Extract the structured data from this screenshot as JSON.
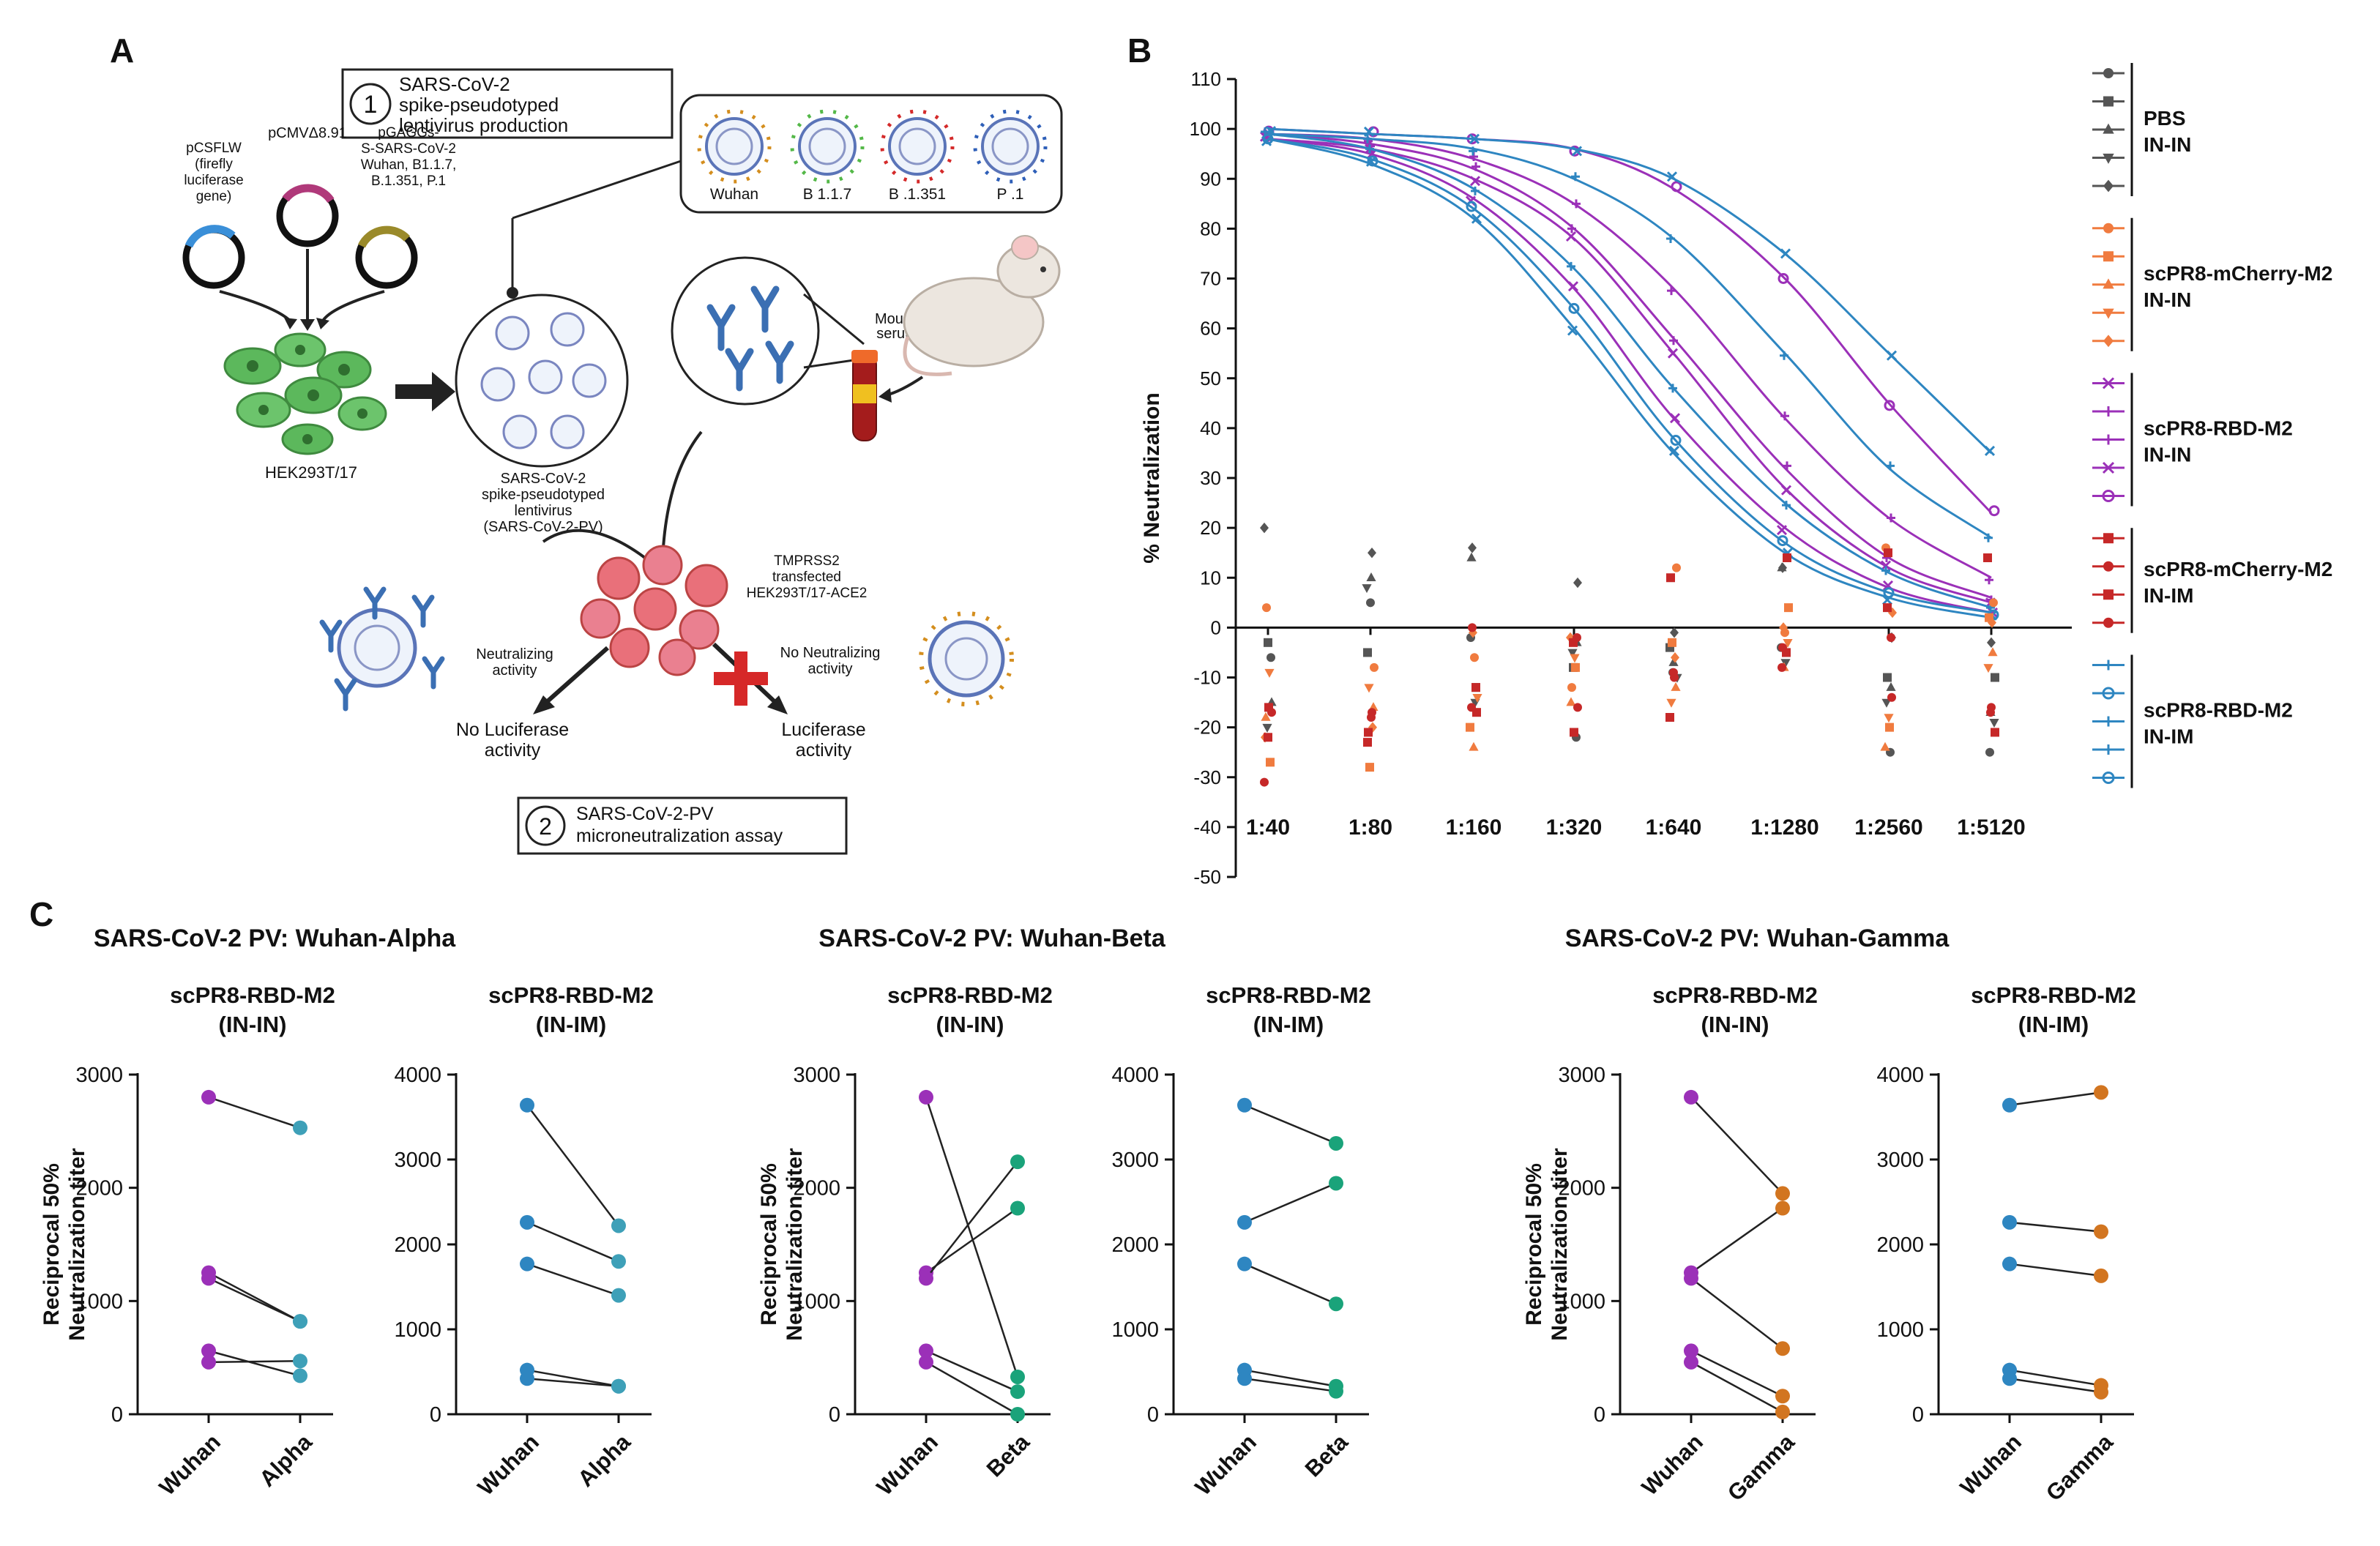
{
  "panel_labels": {
    "a": "A",
    "b": "B",
    "c": "C"
  },
  "panel_a": {
    "step1_number": "1",
    "step1_lines": [
      "SARS-CoV-2",
      "spike-pseudotyped",
      "lentivirus production"
    ],
    "plasmid_pcsflw": [
      "pCSFLW",
      "(firefly",
      "luciferase",
      "gene)"
    ],
    "plasmid_pcmv": "pCMVΔ8.91",
    "plasmid_pgaggs": [
      "pGAGGs-",
      "S-SARS-CoV-2",
      "Wuhan, B1.1.7,",
      "B.1.351, P.1"
    ],
    "variants": [
      "Wuhan",
      "B 1.1.7",
      "B .1.351",
      "P .1"
    ],
    "cell_label": "HEK293T/17",
    "pv_label": [
      "SARS-CoV-2",
      "spike-pseudotyped",
      "lentivirus",
      "(SARS-CoV-2-PV)"
    ],
    "mouse_label": [
      "Mouse",
      "serum"
    ],
    "target_cell_label": [
      "TMPRSS2",
      "transfected",
      "HEK293T/17-ACE2"
    ],
    "neutralizing_label": [
      "Neutralizing",
      "activity"
    ],
    "no_neutralizing_label": [
      "No Neutralizing",
      "activity"
    ],
    "outcome_no_luc": [
      "No Luciferase",
      "activity"
    ],
    "outcome_luc": [
      "Luciferase",
      "activity"
    ],
    "step2_number": "2",
    "step2_lines": [
      "SARS-CoV-2-PV",
      "microneutralization assay"
    ],
    "colors": {
      "plasmid_blue": "#3a8fd8",
      "plasmid_magenta": "#b0397a",
      "plasmid_olive": "#9a8a2a",
      "cell_green": "#5cb85c",
      "antibody_blue": "#3b6fb3",
      "red_cross": "#d62828"
    }
  },
  "panel_b_chart": {
    "type": "scatter",
    "ylabel": "% Neutralization",
    "y_ticks": [
      110,
      100,
      90,
      80,
      70,
      60,
      50,
      40,
      30,
      20,
      10,
      0,
      -10,
      -20,
      -30,
      -40,
      -50
    ],
    "ylim": [
      -50,
      110
    ],
    "categories": [
      "1:40",
      "1:80",
      "1:160",
      "1:320",
      "1:640",
      "1:1280",
      "1:2560",
      "1:5120"
    ],
    "legend_groups": [
      {
        "name": "PBS",
        "route": "IN-IN",
        "color": "#555555"
      },
      {
        "name": "scPR8-mCherry-M2",
        "route": "IN-IN",
        "color": "#f07b3f"
      },
      {
        "name": "scPR8-RBD-M2",
        "route": "IN-IN",
        "color": "#9b30b8"
      },
      {
        "name": "scPR8-mCherry-M2",
        "route": "IN-IM",
        "color": "#c62828"
      },
      {
        "name": "scPR8-RBD-M2",
        "route": "IN-IM",
        "color": "#2e86c1"
      }
    ],
    "fitted_curves": [
      {
        "group": "scPR8-RBD-M2 IN-IN",
        "values": [
          98,
          96,
          90,
          78,
          55,
          28,
          12,
          5
        ]
      },
      {
        "group": "scPR8-RBD-M2 IN-IN",
        "values": [
          99,
          98,
          94,
          85,
          68,
          42,
          22,
          10
        ]
      },
      {
        "group": "scPR8-RBD-M2 IN-IN",
        "values": [
          100,
          99,
          98,
          96,
          88,
          70,
          45,
          23
        ]
      },
      {
        "group": "scPR8-RBD-M2 IN-IN",
        "values": [
          98,
          95,
          86,
          68,
          42,
          20,
          8,
          3
        ]
      },
      {
        "group": "scPR8-RBD-M2 IN-IN",
        "values": [
          99,
          97,
          92,
          80,
          58,
          32,
          14,
          6
        ]
      },
      {
        "group": "scPR8-RBD-M2 IN-IM",
        "values": [
          100,
          99,
          98,
          96,
          90,
          75,
          55,
          35
        ]
      },
      {
        "group": "scPR8-RBD-M2 IN-IM",
        "values": [
          99,
          98,
          96,
          90,
          78,
          55,
          32,
          18
        ]
      },
      {
        "group": "scPR8-RBD-M2 IN-IM",
        "values": [
          98,
          94,
          84,
          64,
          38,
          17,
          7,
          3
        ]
      },
      {
        "group": "scPR8-RBD-M2 IN-IM",
        "values": [
          98,
          93,
          82,
          60,
          35,
          15,
          6,
          2
        ]
      },
      {
        "group": "scPR8-RBD-M2 IN-IM",
        "values": [
          99,
          96,
          88,
          72,
          48,
          25,
          11,
          4
        ]
      }
    ],
    "scatter_series": [
      {
        "group": "PBS IN-IN",
        "color": "#555555",
        "values": [
          20,
          15,
          16,
          9,
          -1,
          12,
          -2,
          -3
        ],
        "marker": "diamond"
      },
      {
        "group": "PBS IN-IN",
        "color": "#555555",
        "values": [
          -3,
          -5,
          -12,
          -8,
          -4,
          -5,
          -10,
          -10
        ],
        "marker": "square"
      },
      {
        "group": "PBS IN-IN",
        "color": "#555555",
        "values": [
          -15,
          10,
          14,
          -3,
          -7,
          12,
          -12,
          -17
        ],
        "marker": "triangle"
      },
      {
        "group": "PBS IN-IN",
        "color": "#555555",
        "values": [
          -20,
          8,
          -15,
          -5,
          -10,
          -7,
          -15,
          -19
        ],
        "marker": "triangle-down"
      },
      {
        "group": "PBS IN-IN",
        "color": "#555555",
        "values": [
          -6,
          5,
          -2,
          -22,
          -9,
          -4,
          -25,
          -25
        ],
        "marker": "circle"
      },
      {
        "group": "scPR8-mCherry-M2 IN-IN",
        "color": "#f07b3f",
        "values": [
          4,
          -8,
          -6,
          -12,
          12,
          -1,
          16,
          5
        ],
        "marker": "circle"
      },
      {
        "group": "scPR8-mCherry-M2 IN-IN",
        "color": "#f07b3f",
        "values": [
          -27,
          -28,
          -20,
          -8,
          -3,
          4,
          -20,
          2
        ],
        "marker": "square"
      },
      {
        "group": "scPR8-mCherry-M2 IN-IN",
        "color": "#f07b3f",
        "values": [
          -18,
          -16,
          -24,
          -15,
          -12,
          -8,
          -24,
          -5
        ],
        "marker": "triangle"
      },
      {
        "group": "scPR8-mCherry-M2 IN-IN",
        "color": "#f07b3f",
        "values": [
          -9,
          -12,
          -14,
          -6,
          -15,
          -3,
          -18,
          -8
        ],
        "marker": "triangle-down"
      },
      {
        "group": "scPR8-mCherry-M2 IN-IN",
        "color": "#f07b3f",
        "values": [
          -22,
          -20,
          -1,
          -2,
          -6,
          0,
          3,
          1
        ],
        "marker": "diamond"
      },
      {
        "group": "scPR8-mCherry-M2 IN-IM",
        "color": "#c62828",
        "values": [
          -16,
          -21,
          -17,
          -21,
          10,
          14,
          15,
          14
        ],
        "marker": "square"
      },
      {
        "group": "scPR8-mCherry-M2 IN-IM",
        "color": "#c62828",
        "values": [
          -31,
          -17,
          0,
          -16,
          -10,
          -4,
          -14,
          -16
        ],
        "marker": "circle"
      },
      {
        "group": "scPR8-mCherry-M2 IN-IM",
        "color": "#c62828",
        "values": [
          -22,
          -23,
          -12,
          -3,
          -18,
          -5,
          4,
          -21
        ],
        "marker": "square"
      },
      {
        "group": "scPR8-mCherry-M2 IN-IM",
        "color": "#c62828",
        "values": [
          -17,
          -18,
          -16,
          -2,
          -9,
          -8,
          -2,
          -17
        ],
        "marker": "circle"
      }
    ]
  },
  "panel_c": {
    "ylabel": "Reciprocal 50% Neutralization titer",
    "groups": [
      {
        "title": "SARS-CoV-2 PV: Wuhan-Alpha",
        "plots": [
          {
            "subtitle": "scPR8-RBD-M2",
            "route": "(IN-IN)",
            "categories": [
              "Wuhan",
              "Alpha"
            ],
            "ylim": [
              0,
              3000
            ],
            "ticks": [
              0,
              1000,
              2000,
              3000
            ],
            "color_left": "#9b30b8",
            "color_right": "#3ea0b8",
            "pairs": [
              [
                2800,
                2530
              ],
              [
                1250,
                820
              ],
              [
                1200,
                820
              ],
              [
                560,
                340
              ],
              [
                460,
                470
              ]
            ]
          },
          {
            "subtitle": "scPR8-RBD-M2",
            "route": "(IN-IM)",
            "categories": [
              "Wuhan",
              "Alpha"
            ],
            "ylim": [
              0,
              4000
            ],
            "ticks": [
              0,
              1000,
              2000,
              3000,
              4000
            ],
            "color_left": "#2e86c1",
            "color_right": "#3ea0b8",
            "pairs": [
              [
                3640,
                2220
              ],
              [
                2260,
                1800
              ],
              [
                1770,
                1400
              ],
              [
                520,
                330
              ],
              [
                420,
                330
              ]
            ]
          }
        ]
      },
      {
        "title": "SARS-CoV-2 PV: Wuhan-Beta",
        "plots": [
          {
            "subtitle": "scPR8-RBD-M2",
            "route": "(IN-IN)",
            "categories": [
              "Wuhan",
              "Beta"
            ],
            "ylim": [
              0,
              3000
            ],
            "ticks": [
              0,
              1000,
              2000,
              3000
            ],
            "color_left": "#9b30b8",
            "color_right": "#1aa37a",
            "pairs": [
              [
                2800,
                330
              ],
              [
                1250,
                1820
              ],
              [
                1200,
                2230
              ],
              [
                560,
                200
              ],
              [
                460,
                0
              ]
            ]
          },
          {
            "subtitle": "scPR8-RBD-M2",
            "route": "(IN-IM)",
            "categories": [
              "Wuhan",
              "Beta"
            ],
            "ylim": [
              0,
              4000
            ],
            "ticks": [
              0,
              1000,
              2000,
              3000,
              4000
            ],
            "color_left": "#2e86c1",
            "color_right": "#1aa37a",
            "pairs": [
              [
                3640,
                3190
              ],
              [
                2260,
                2720
              ],
              [
                1770,
                1300
              ],
              [
                520,
                330
              ],
              [
                420,
                270
              ]
            ]
          }
        ]
      },
      {
        "title": "SARS-CoV-2 PV: Wuhan-Gamma",
        "plots": [
          {
            "subtitle": "scPR8-RBD-M2",
            "route": "(IN-IN)",
            "categories": [
              "Wuhan",
              "Gamma"
            ],
            "ylim": [
              0,
              3000
            ],
            "ticks": [
              0,
              1000,
              2000,
              3000
            ],
            "color_left": "#9b30b8",
            "color_right": "#d27520",
            "pairs": [
              [
                2800,
                1950
              ],
              [
                1250,
                1820
              ],
              [
                1200,
                580
              ],
              [
                560,
                160
              ],
              [
                460,
                20
              ]
            ]
          },
          {
            "subtitle": "scPR8-RBD-M2",
            "route": "(IN-IM)",
            "categories": [
              "Wuhan",
              "Gamma"
            ],
            "ylim": [
              0,
              4000
            ],
            "ticks": [
              0,
              1000,
              2000,
              3000,
              4000
            ],
            "color_left": "#2e86c1",
            "color_right": "#d27520",
            "pairs": [
              [
                3640,
                3790
              ],
              [
                2260,
                2150
              ],
              [
                1770,
                1630
              ],
              [
                520,
                340
              ],
              [
                420,
                260
              ]
            ]
          }
        ]
      }
    ]
  }
}
